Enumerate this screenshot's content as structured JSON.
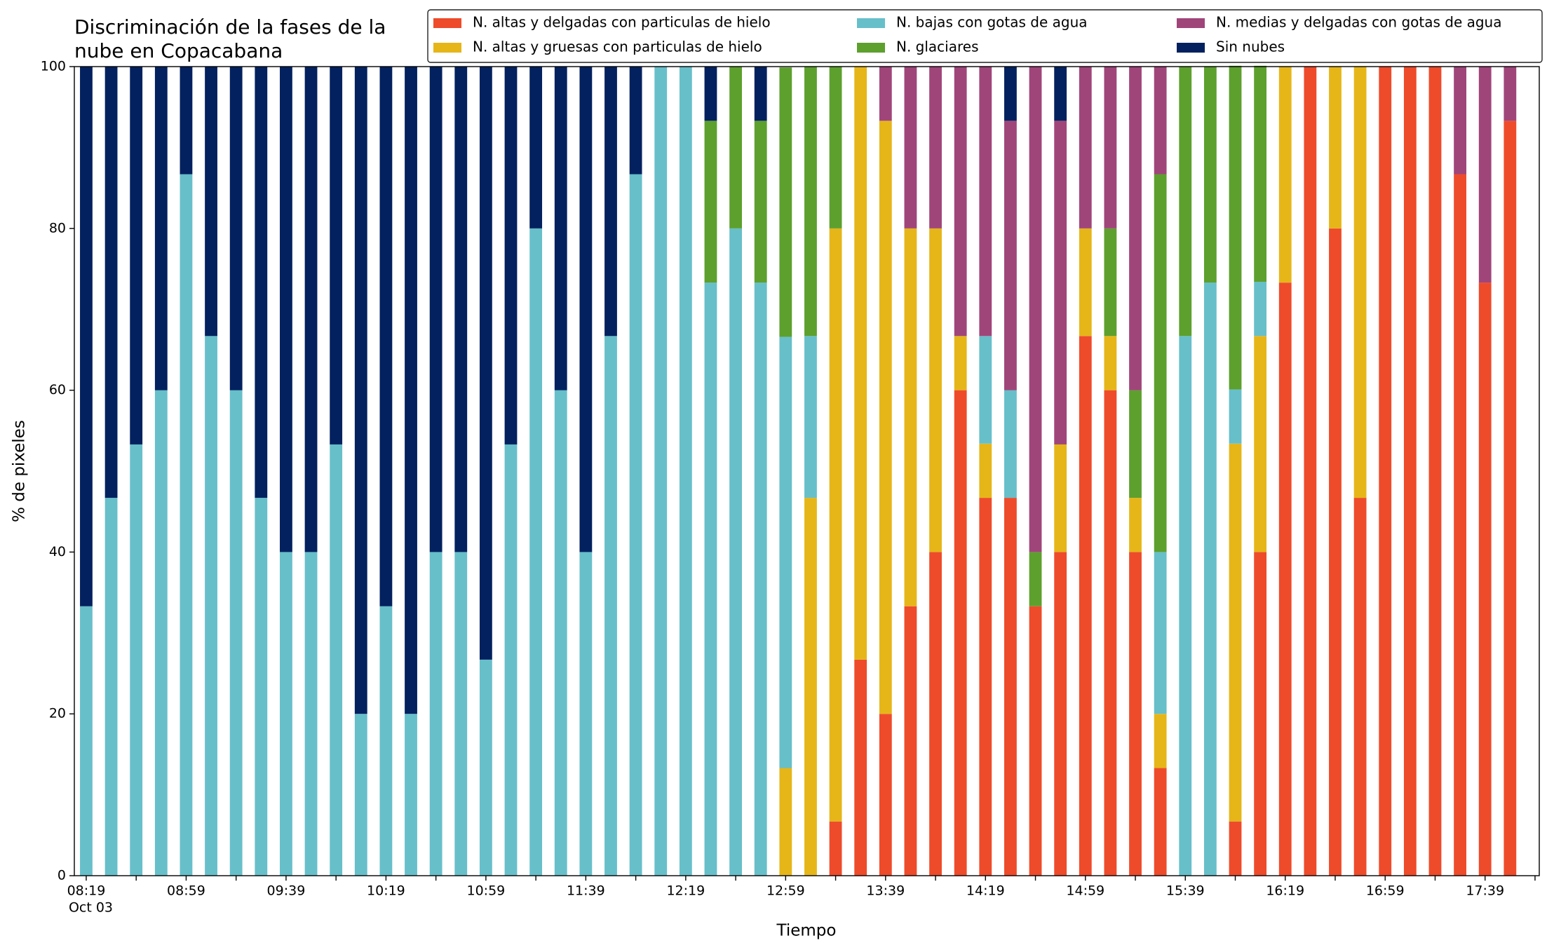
{
  "chart_data": {
    "type": "stacked_bar",
    "title": [
      "Discriminación de la fases de la",
      "nube en Copacabana"
    ],
    "xlabel": "Tiempo",
    "ylabel": "% de pixeles",
    "x_date": "Oct 03",
    "categories": [
      "08:19",
      null,
      null,
      null,
      "08:59",
      null,
      null,
      null,
      "09:39",
      null,
      null,
      null,
      "10:19",
      null,
      null,
      null,
      "10:59",
      null,
      null,
      null,
      "11:39",
      null,
      null,
      null,
      "12:19",
      null,
      null,
      null,
      "12:59",
      null,
      null,
      null,
      "13:39",
      null,
      null,
      null,
      "14:19",
      null,
      null,
      null,
      "14:59",
      null,
      null,
      null,
      "15:39",
      null,
      null,
      null,
      "16:19",
      null,
      null,
      null,
      "16:59",
      null,
      null,
      null,
      "17:39",
      null
    ],
    "ylim": [
      0,
      100
    ],
    "yticks": [
      0,
      20,
      40,
      60,
      80,
      100
    ],
    "grid": false,
    "legend": "top right",
    "series": [
      {
        "name": "N. altas y delgadas con particulas de hielo",
        "color": "#ee4b2b",
        "values": [
          0,
          0,
          0,
          0,
          0,
          0,
          0,
          0,
          0,
          0,
          0,
          0,
          0,
          0,
          0,
          0,
          0,
          0,
          0,
          0,
          0,
          0,
          0,
          0,
          0,
          0,
          0,
          0,
          0,
          0,
          6.7,
          26.7,
          20,
          33.3,
          40,
          60,
          46.7,
          46.7,
          33.3,
          40,
          66.7,
          60,
          40,
          13.3,
          0,
          0,
          6.7,
          40,
          73.3,
          100,
          80,
          46.7,
          100,
          100,
          100,
          86.7,
          73.3,
          93.3
        ]
      },
      {
        "name": "N. altas y gruesas con particulas de hielo",
        "color": "#e6b619",
        "values": [
          0,
          0,
          0,
          0,
          0,
          0,
          0,
          0,
          0,
          0,
          0,
          0,
          0,
          0,
          0,
          0,
          0,
          0,
          0,
          0,
          0,
          0,
          0,
          0,
          0,
          0,
          0,
          0,
          13.3,
          46.7,
          73.3,
          73.3,
          73.3,
          46.7,
          40,
          6.7,
          6.7,
          0,
          0,
          13.3,
          13.3,
          6.7,
          6.7,
          6.7,
          0,
          0,
          46.7,
          26.7,
          26.7,
          0,
          20,
          53.3,
          0,
          0,
          0,
          0,
          0,
          0
        ]
      },
      {
        "name": "N. bajas con gotas de agua",
        "color": "#67bfca",
        "values": [
          33.3,
          46.7,
          53.3,
          60,
          86.7,
          66.7,
          60,
          46.7,
          40,
          40,
          53.3,
          20,
          33.3,
          20,
          40,
          40,
          26.7,
          53.3,
          80,
          60,
          40,
          66.7,
          86.7,
          100,
          100,
          73.3,
          80,
          73.3,
          53.3,
          20,
          0,
          0,
          0,
          0,
          0,
          0,
          13.3,
          13.3,
          0,
          0,
          0,
          0,
          0,
          20,
          66.7,
          73.3,
          6.7,
          6.7,
          0,
          0,
          0,
          0,
          0,
          0,
          0,
          0,
          0,
          0
        ]
      },
      {
        "name": "N. glaciares",
        "color": "#5da02e",
        "values": [
          0,
          0,
          0,
          0,
          0,
          0,
          0,
          0,
          0,
          0,
          0,
          0,
          0,
          0,
          0,
          0,
          0,
          0,
          0,
          0,
          0,
          0,
          0,
          0,
          0,
          20,
          20,
          20,
          33.3,
          33.3,
          20,
          0,
          0,
          0,
          0,
          0,
          0,
          0,
          6.7,
          0,
          0,
          13.3,
          13.3,
          46.7,
          33.3,
          26.7,
          40,
          26.7,
          0,
          0,
          0,
          0,
          0,
          0,
          0,
          0,
          0,
          0
        ]
      },
      {
        "name": "N. medias y delgadas con gotas de agua",
        "color": "#a0457a",
        "values": [
          0,
          0,
          0,
          0,
          0,
          0,
          0,
          0,
          0,
          0,
          0,
          0,
          0,
          0,
          0,
          0,
          0,
          0,
          0,
          0,
          0,
          0,
          0,
          0,
          0,
          0,
          0,
          0,
          0,
          0,
          0,
          0,
          6.7,
          20,
          20,
          33.3,
          33.3,
          33.3,
          60,
          40,
          20,
          20,
          40,
          13.3,
          0,
          0,
          0,
          0,
          0,
          0,
          0,
          0,
          0,
          0,
          0,
          13.3,
          26.7,
          6.7
        ]
      },
      {
        "name": "Sin nubes",
        "color": "#03215f",
        "values": [
          66.7,
          53.3,
          46.7,
          40,
          13.3,
          33.3,
          40,
          53.3,
          60,
          60,
          46.7,
          80,
          66.7,
          80,
          60,
          60,
          73.3,
          46.7,
          20,
          40,
          60,
          33.3,
          13.3,
          0,
          0,
          6.7,
          0,
          6.7,
          0,
          0,
          0,
          0,
          0,
          0,
          0,
          0,
          0,
          6.7,
          0,
          6.7,
          0,
          0,
          0,
          0,
          0,
          0,
          0,
          0,
          0,
          0,
          0,
          0,
          0,
          0,
          0,
          0,
          0,
          0
        ]
      }
    ]
  }
}
